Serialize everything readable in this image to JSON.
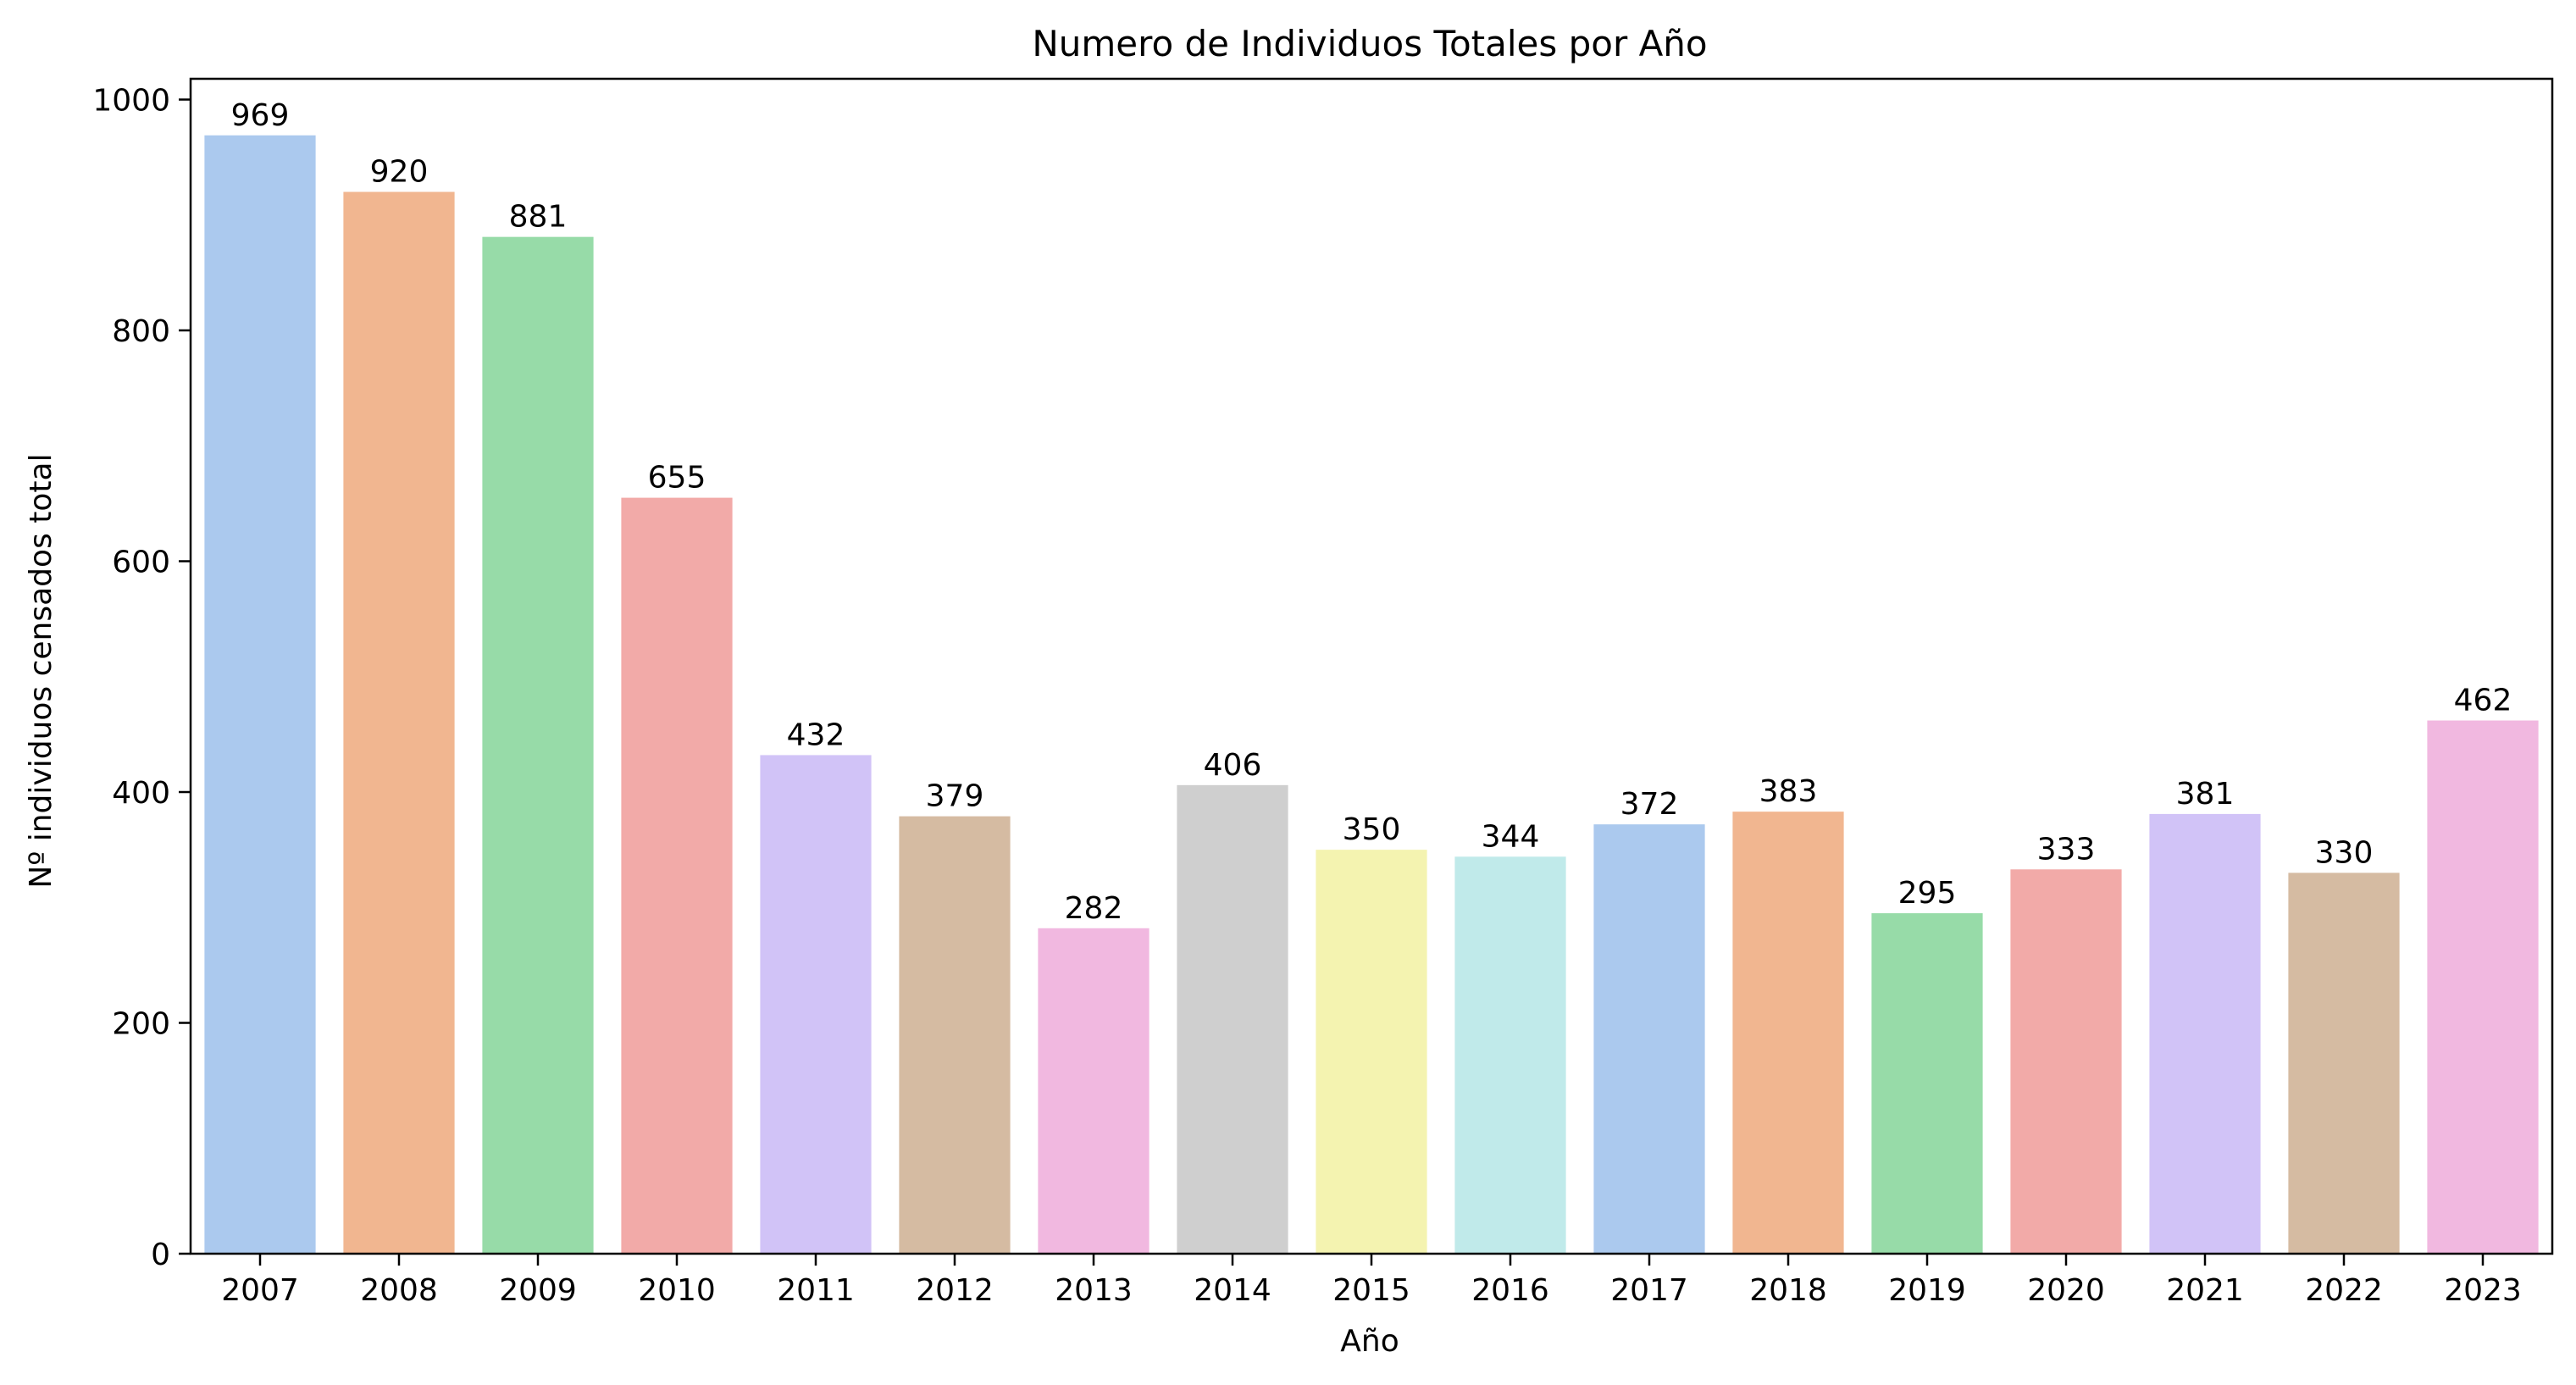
{
  "chart_data": {
    "type": "bar",
    "title": "Numero de Individuos Totales por Año",
    "xlabel": "Año",
    "ylabel": "Nº individuos censados total",
    "categories": [
      "2007",
      "2008",
      "2009",
      "2010",
      "2011",
      "2012",
      "2013",
      "2014",
      "2015",
      "2016",
      "2017",
      "2018",
      "2019",
      "2020",
      "2021",
      "2022",
      "2023"
    ],
    "values": [
      969,
      920,
      881,
      655,
      432,
      379,
      282,
      406,
      350,
      344,
      372,
      383,
      295,
      333,
      381,
      330,
      462
    ],
    "data_labels": [
      "969",
      "920",
      "881",
      "655",
      "432",
      "379",
      "282",
      "406",
      "350",
      "344",
      "372",
      "383",
      "295",
      "333",
      "381",
      "330",
      "462"
    ],
    "ylim": [
      0,
      1018
    ],
    "yticks": [
      0,
      200,
      400,
      600,
      800,
      1000
    ],
    "ytick_labels": [
      "0",
      "200",
      "400",
      "600",
      "800",
      "1000"
    ],
    "grid": false,
    "colors": [
      "#abc9ee",
      "#f1b690",
      "#97dba8",
      "#f2aaa8",
      "#d1c3f7",
      "#d5bba2",
      "#f1b8e0",
      "#cfcfcf",
      "#f4f3b0",
      "#c0eaea",
      "#abc9ee",
      "#f1b690",
      "#97dba8",
      "#f2aaa8",
      "#d1c3f7",
      "#d5bba2",
      "#f1b8e0"
    ]
  }
}
